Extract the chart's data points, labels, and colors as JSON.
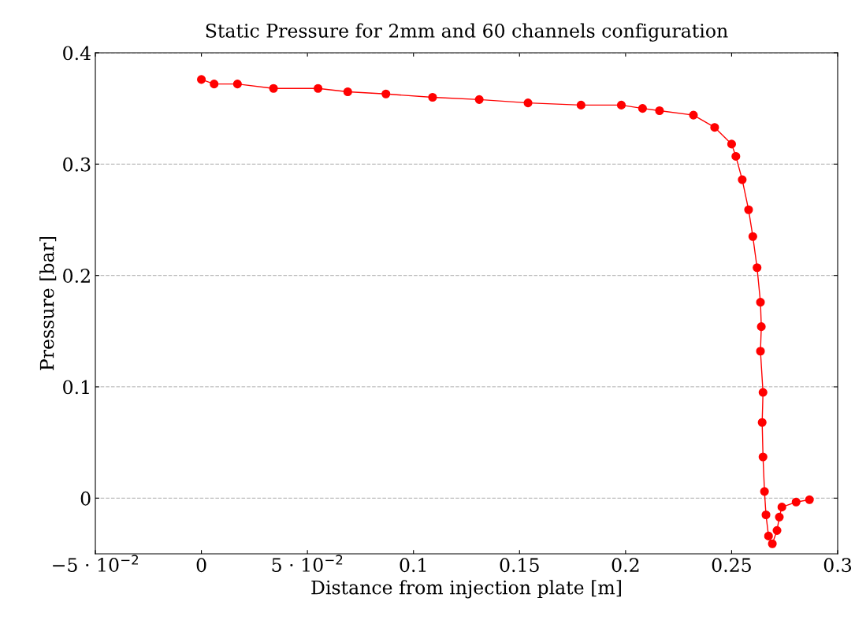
{
  "chart_data": {
    "type": "line",
    "title": "Static Pressure for 2mm and 60 channels configuration",
    "xlabel": "Distance from injection plate [m]",
    "ylabel": "Pressure [bar]",
    "xlim": [
      -0.05,
      0.3
    ],
    "ylim": [
      -0.05,
      0.4
    ],
    "xticks": [
      {
        "value": -0.05,
        "label": "−5 · 10$^{−2}$"
      },
      0,
      {
        "value": 0.05,
        "label": "5 · 10$^{−2}$"
      },
      0.1,
      0.15,
      0.2,
      0.25,
      0.3
    ],
    "yticks": [
      0,
      0.1,
      0.2,
      0.3,
      0.4
    ],
    "grid": "y",
    "marker": "circle",
    "line_style": "solid",
    "series": [
      {
        "color": "#ff0000",
        "x": [
          0,
          0.006,
          0.017,
          0.034,
          0.055,
          0.069,
          0.087,
          0.109,
          0.131,
          0.154,
          0.179,
          0.198,
          0.208,
          0.216,
          0.232,
          0.242,
          0.25,
          0.252,
          0.255,
          0.258,
          0.26,
          0.262,
          0.2636,
          0.264,
          0.2636,
          0.2648,
          0.2644,
          0.2648,
          0.2655,
          0.2662,
          0.2674,
          0.2692,
          0.2714,
          0.2725,
          0.2737,
          0.2804,
          0.2867
        ],
        "values": [
          0.376,
          0.372,
          0.372,
          0.368,
          0.368,
          0.365,
          0.363,
          0.36,
          0.358,
          0.355,
          0.353,
          0.353,
          0.35,
          0.348,
          0.344,
          0.333,
          0.318,
          0.307,
          0.286,
          0.259,
          0.235,
          0.207,
          0.176,
          0.154,
          0.132,
          0.095,
          0.068,
          0.037,
          0.006,
          -0.015,
          -0.034,
          -0.041,
          -0.029,
          -0.017,
          -0.008,
          -0.0035,
          -0.0014
        ]
      }
    ]
  }
}
